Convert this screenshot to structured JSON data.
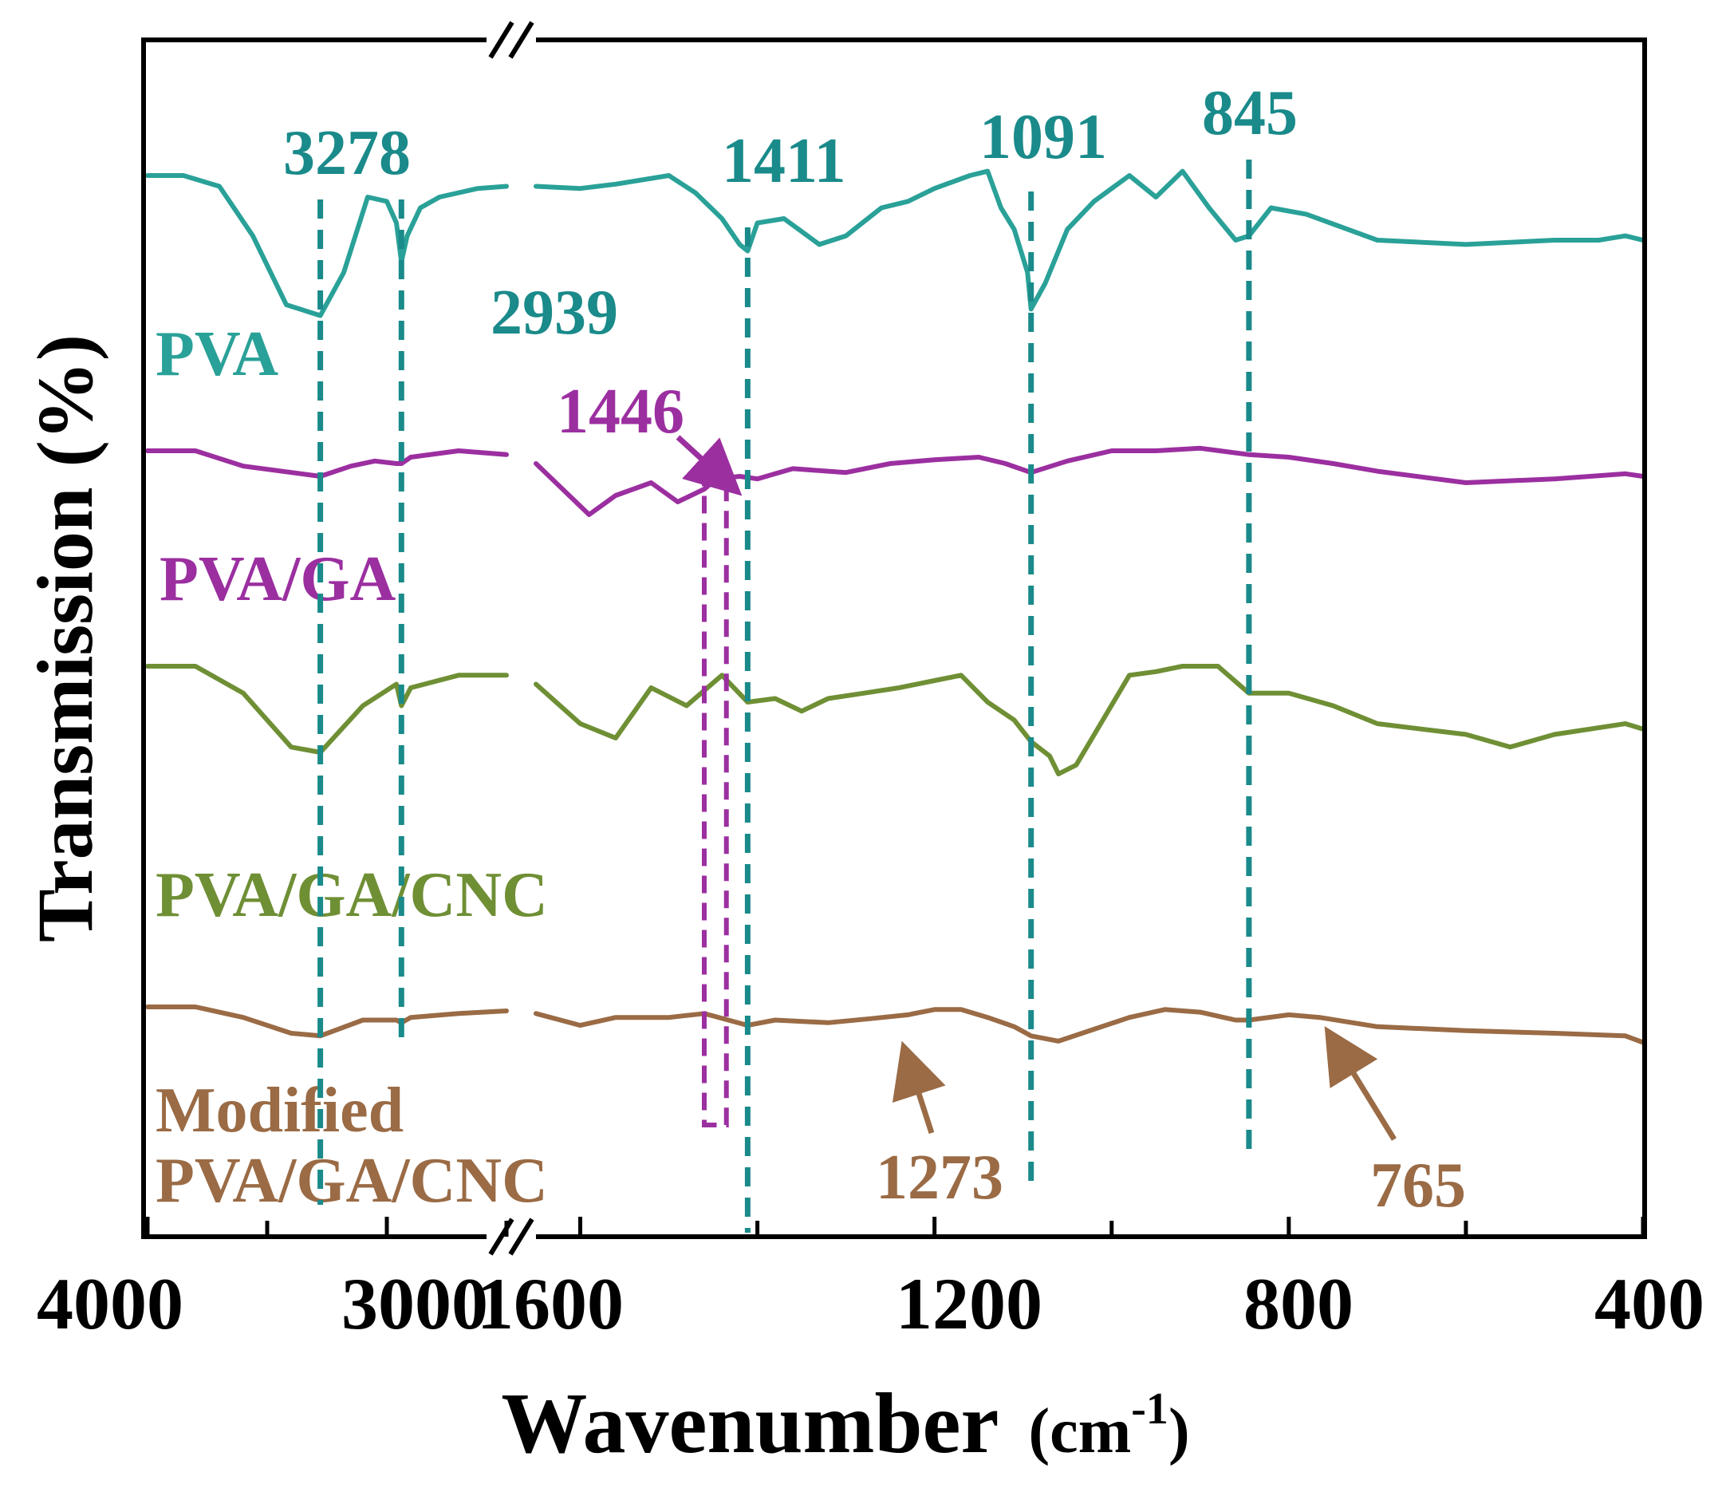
{
  "chart_data": {
    "type": "line",
    "title": "",
    "xlabel": "Wavenumber",
    "xlabel_unit_base": "cm",
    "xlabel_unit_exp": "-1",
    "ylabel": "Transmission (%)",
    "x_axis_break": true,
    "x_segments": [
      {
        "range": [
          4000,
          2500
        ],
        "ticks": [
          4000,
          3000
        ],
        "tick_labels": [
          "4000",
          "3000"
        ],
        "minor_ticks": [
          3500,
          3000,
          2500
        ]
      },
      {
        "range": [
          1650,
          400
        ],
        "ticks": [
          1600,
          1200,
          800,
          400
        ],
        "tick_labels": [
          "1600",
          "1200",
          "800",
          "400"
        ],
        "minor_ticks": [
          1400,
          1000,
          600
        ]
      }
    ],
    "series": [
      {
        "name": "PVA",
        "label": "PVA",
        "color": "#2aa198",
        "points": [
          [
            4000,
            0.0
          ],
          [
            3850,
            0.0
          ],
          [
            3700,
            0.05
          ],
          [
            3560,
            0.28
          ],
          [
            3420,
            0.6
          ],
          [
            3278,
            0.65
          ],
          [
            3180,
            0.45
          ],
          [
            3080,
            0.1
          ],
          [
            3000,
            0.12
          ],
          [
            2960,
            0.22
          ],
          [
            2939,
            0.4
          ],
          [
            2915,
            0.28
          ],
          [
            2860,
            0.15
          ],
          [
            2780,
            0.1
          ],
          [
            2620,
            0.06
          ],
          [
            2500,
            0.05
          ],
          null,
          [
            1650,
            0.05
          ],
          [
            1600,
            0.06
          ],
          [
            1560,
            0.04
          ],
          [
            1500,
            0.0
          ],
          [
            1470,
            0.08
          ],
          [
            1440,
            0.2
          ],
          [
            1420,
            0.32
          ],
          [
            1411,
            0.35
          ],
          [
            1400,
            0.22
          ],
          [
            1370,
            0.2
          ],
          [
            1330,
            0.32
          ],
          [
            1300,
            0.28
          ],
          [
            1260,
            0.15
          ],
          [
            1230,
            0.12
          ],
          [
            1200,
            0.06
          ],
          [
            1160,
            0.0
          ],
          [
            1140,
            -0.02
          ],
          [
            1125,
            0.15
          ],
          [
            1110,
            0.25
          ],
          [
            1095,
            0.45
          ],
          [
            1091,
            0.62
          ],
          [
            1075,
            0.5
          ],
          [
            1050,
            0.25
          ],
          [
            1020,
            0.12
          ],
          [
            980,
            0.0
          ],
          [
            950,
            0.1
          ],
          [
            920,
            -0.02
          ],
          [
            890,
            0.15
          ],
          [
            860,
            0.3
          ],
          [
            845,
            0.28
          ],
          [
            820,
            0.15
          ],
          [
            780,
            0.18
          ],
          [
            700,
            0.3
          ],
          [
            600,
            0.32
          ],
          [
            500,
            0.3
          ],
          [
            450,
            0.3
          ],
          [
            420,
            0.28
          ],
          [
            400,
            0.3
          ]
        ]
      },
      {
        "name": "PVA/GA",
        "label": "PVA/GA",
        "color": "#9b2fa0",
        "points": [
          [
            4000,
            0.0
          ],
          [
            3800,
            0.0
          ],
          [
            3600,
            0.12
          ],
          [
            3278,
            0.2
          ],
          [
            3150,
            0.12
          ],
          [
            3050,
            0.08
          ],
          [
            2960,
            0.1
          ],
          [
            2939,
            0.1
          ],
          [
            2900,
            0.05
          ],
          [
            2700,
            0.0
          ],
          [
            2500,
            0.03
          ],
          null,
          [
            1650,
            0.1
          ],
          [
            1620,
            0.3
          ],
          [
            1590,
            0.5
          ],
          [
            1560,
            0.35
          ],
          [
            1520,
            0.25
          ],
          [
            1490,
            0.4
          ],
          [
            1460,
            0.3
          ],
          [
            1446,
            0.22
          ],
          [
            1420,
            0.2
          ],
          [
            1400,
            0.22
          ],
          [
            1380,
            0.18
          ],
          [
            1360,
            0.14
          ],
          [
            1300,
            0.17
          ],
          [
            1250,
            0.1
          ],
          [
            1200,
            0.07
          ],
          [
            1150,
            0.05
          ],
          [
            1120,
            0.1
          ],
          [
            1091,
            0.17
          ],
          [
            1050,
            0.08
          ],
          [
            1000,
            0.0
          ],
          [
            950,
            0.0
          ],
          [
            900,
            -0.02
          ],
          [
            845,
            0.03
          ],
          [
            800,
            0.05
          ],
          [
            750,
            0.1
          ],
          [
            700,
            0.16
          ],
          [
            600,
            0.25
          ],
          [
            500,
            0.22
          ],
          [
            420,
            0.18
          ],
          [
            400,
            0.2
          ]
        ]
      },
      {
        "name": "PVA/GA/CNC",
        "label": "PVA/GA/CNC",
        "color": "#6f8f35",
        "points": [
          [
            4000,
            0.0
          ],
          [
            3800,
            0.0
          ],
          [
            3600,
            0.15
          ],
          [
            3400,
            0.45
          ],
          [
            3278,
            0.48
          ],
          [
            3100,
            0.22
          ],
          [
            2960,
            0.1
          ],
          [
            2939,
            0.22
          ],
          [
            2900,
            0.12
          ],
          [
            2700,
            0.05
          ],
          [
            2500,
            0.05
          ],
          null,
          [
            1650,
            0.1
          ],
          [
            1600,
            0.32
          ],
          [
            1560,
            0.4
          ],
          [
            1520,
            0.12
          ],
          [
            1480,
            0.22
          ],
          [
            1440,
            0.05
          ],
          [
            1411,
            0.2
          ],
          [
            1380,
            0.18
          ],
          [
            1350,
            0.25
          ],
          [
            1320,
            0.18
          ],
          [
            1280,
            0.15
          ],
          [
            1240,
            0.12
          ],
          [
            1200,
            0.08
          ],
          [
            1170,
            0.05
          ],
          [
            1140,
            0.2
          ],
          [
            1110,
            0.3
          ],
          [
            1091,
            0.42
          ],
          [
            1070,
            0.5
          ],
          [
            1060,
            0.6
          ],
          [
            1040,
            0.55
          ],
          [
            1010,
            0.3
          ],
          [
            980,
            0.05
          ],
          [
            950,
            0.03
          ],
          [
            920,
            0.0
          ],
          [
            880,
            0.0
          ],
          [
            845,
            0.15
          ],
          [
            800,
            0.15
          ],
          [
            750,
            0.22
          ],
          [
            700,
            0.32
          ],
          [
            600,
            0.38
          ],
          [
            550,
            0.45
          ],
          [
            500,
            0.38
          ],
          [
            420,
            0.32
          ],
          [
            400,
            0.35
          ]
        ]
      },
      {
        "name": "Modified PVA/GA/CNC",
        "label": "Modified PVA/GA/CNC",
        "color": "#9a6b45",
        "points": [
          [
            4000,
            0.0
          ],
          [
            3800,
            0.0
          ],
          [
            3600,
            0.08
          ],
          [
            3400,
            0.2
          ],
          [
            3278,
            0.22
          ],
          [
            3100,
            0.1
          ],
          [
            2960,
            0.1
          ],
          [
            2939,
            0.12
          ],
          [
            2900,
            0.08
          ],
          [
            2700,
            0.05
          ],
          [
            2500,
            0.03
          ],
          null,
          [
            1650,
            0.05
          ],
          [
            1600,
            0.14
          ],
          [
            1560,
            0.08
          ],
          [
            1500,
            0.08
          ],
          [
            1460,
            0.05
          ],
          [
            1411,
            0.14
          ],
          [
            1380,
            0.1
          ],
          [
            1320,
            0.12
          ],
          [
            1273,
            0.09
          ],
          [
            1230,
            0.06
          ],
          [
            1200,
            0.02
          ],
          [
            1170,
            0.02
          ],
          [
            1140,
            0.08
          ],
          [
            1110,
            0.15
          ],
          [
            1091,
            0.22
          ],
          [
            1060,
            0.26
          ],
          [
            1020,
            0.17
          ],
          [
            980,
            0.08
          ],
          [
            940,
            0.02
          ],
          [
            900,
            0.04
          ],
          [
            860,
            0.1
          ],
          [
            845,
            0.1
          ],
          [
            800,
            0.06
          ],
          [
            765,
            0.08
          ],
          [
            700,
            0.15
          ],
          [
            600,
            0.18
          ],
          [
            500,
            0.2
          ],
          [
            420,
            0.22
          ],
          [
            400,
            0.27
          ]
        ]
      }
    ],
    "series_labels": [
      {
        "series": "PVA",
        "lines": [
          "PVA"
        ]
      },
      {
        "series": "PVA/GA",
        "lines": [
          "PVA/GA"
        ]
      },
      {
        "series": "PVA/GA/CNC",
        "lines": [
          "PVA/GA/CNC"
        ]
      },
      {
        "series": "Modified PVA/GA/CNC",
        "lines": [
          "Modified",
          "PVA/GA/CNC"
        ]
      }
    ],
    "reference_lines": [
      3278,
      2939,
      1411,
      1091,
      845
    ],
    "reference_color": "#1a8a8a",
    "highlight_box": {
      "from": 1460,
      "to": 1435,
      "color": "#9b2fa0"
    },
    "annotations": [
      {
        "text": "3278",
        "x": 3278,
        "color": "#1a8a8a"
      },
      {
        "text": "2939",
        "x": 2939,
        "color": "#1a8a8a"
      },
      {
        "text": "1411",
        "x": 1411,
        "color": "#1a8a8a"
      },
      {
        "text": "1091",
        "x": 1091,
        "color": "#1a8a8a"
      },
      {
        "text": "845",
        "x": 845,
        "color": "#1a8a8a"
      },
      {
        "text": "1446",
        "x": 1446,
        "color": "#9b2fa0",
        "arrow": true
      },
      {
        "text": "1273",
        "x": 1273,
        "color": "#9a6b45",
        "arrow": true
      },
      {
        "text": "765",
        "x": 765,
        "color": "#9a6b45",
        "arrow": true
      }
    ]
  }
}
